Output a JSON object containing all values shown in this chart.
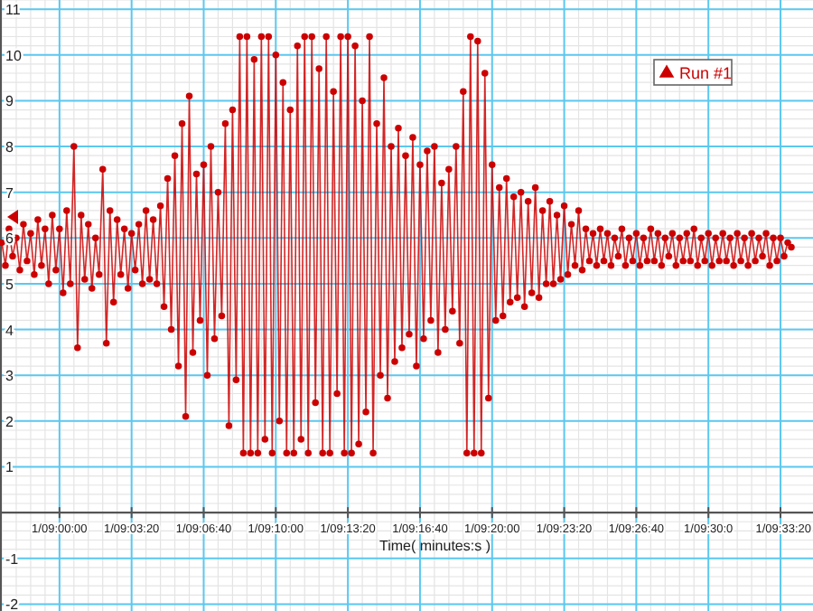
{
  "chart_data": {
    "type": "line",
    "xlabel": "Time( minutes:s )",
    "legend": "top right",
    "marker": "circle",
    "grid": true,
    "ylim": [
      -2.15,
      11.2
    ],
    "yticks": [
      -2,
      -1,
      1,
      2,
      3,
      4,
      5,
      6,
      7,
      8,
      9,
      10,
      11
    ],
    "categories": [
      null,
      null,
      null,
      null,
      null,
      null,
      null,
      null,
      null,
      null,
      null,
      null,
      null,
      null,
      null,
      null,
      "1/09:00:00",
      null,
      null,
      null,
      null,
      null,
      null,
      null,
      null,
      null,
      null,
      null,
      null,
      null,
      null,
      null,
      null,
      null,
      null,
      null,
      "1/09:03:20",
      null,
      null,
      null,
      null,
      null,
      null,
      null,
      null,
      null,
      null,
      null,
      null,
      null,
      null,
      null,
      null,
      null,
      null,
      null,
      "1/09:06:40",
      null,
      null,
      null,
      null,
      null,
      null,
      null,
      null,
      null,
      null,
      null,
      null,
      null,
      null,
      null,
      null,
      null,
      null,
      null,
      "1/09:10:00",
      null,
      null,
      null,
      null,
      null,
      null,
      null,
      null,
      null,
      null,
      null,
      null,
      null,
      null,
      null,
      null,
      null,
      null,
      null,
      "1/09:13:20",
      null,
      null,
      null,
      null,
      null,
      null,
      null,
      null,
      null,
      null,
      null,
      null,
      null,
      null,
      null,
      null,
      null,
      null,
      null,
      "1/09:16:40",
      null,
      null,
      null,
      null,
      null,
      null,
      null,
      null,
      null,
      null,
      null,
      null,
      null,
      null,
      null,
      null,
      null,
      null,
      null,
      "1/09:20:00",
      null,
      null,
      null,
      null,
      null,
      null,
      null,
      null,
      null,
      null,
      null,
      null,
      null,
      null,
      null,
      null,
      null,
      null,
      null,
      "1/09:23:20",
      null,
      null,
      null,
      null,
      null,
      null,
      null,
      null,
      null,
      null,
      null,
      null,
      null,
      null,
      null,
      null,
      null,
      null,
      null,
      "1/09:26:40",
      null,
      null,
      null,
      null,
      null,
      null,
      null,
      null,
      null,
      null,
      null,
      null,
      null,
      null,
      null,
      null,
      null,
      null,
      null,
      "1/09:30:0",
      null,
      null,
      null,
      null,
      null,
      null,
      null,
      null,
      null,
      null,
      null,
      null,
      null,
      null,
      null,
      null,
      null,
      null,
      null,
      "1/09:33:20",
      null,
      null,
      null
    ],
    "series": [
      {
        "name": "Run #1",
        "color": "#cc0000",
        "values": [
          5.9,
          5.4,
          6.2,
          5.6,
          6.0,
          5.3,
          6.3,
          5.5,
          6.1,
          5.2,
          6.4,
          5.4,
          6.2,
          5.0,
          6.5,
          5.3,
          6.2,
          4.8,
          6.6,
          5.0,
          8.0,
          3.6,
          6.5,
          5.1,
          6.3,
          4.9,
          6.0,
          5.2,
          7.5,
          3.7,
          6.6,
          4.6,
          6.4,
          5.2,
          6.2,
          4.9,
          6.1,
          5.3,
          6.3,
          5.0,
          6.6,
          5.1,
          6.4,
          5.0,
          6.7,
          4.5,
          7.3,
          4.0,
          7.8,
          3.2,
          8.5,
          2.1,
          9.1,
          3.5,
          7.4,
          4.2,
          7.6,
          3.0,
          8.0,
          3.8,
          7.0,
          4.3,
          8.5,
          1.9,
          8.8,
          2.9,
          10.4,
          1.3,
          10.4,
          1.3,
          9.9,
          1.3,
          10.4,
          1.6,
          10.4,
          1.3,
          10.0,
          2.0,
          9.4,
          1.3,
          8.8,
          1.3,
          10.2,
          1.6,
          10.4,
          1.3,
          10.4,
          2.4,
          9.7,
          1.3,
          10.4,
          1.3,
          9.2,
          2.6,
          10.4,
          1.3,
          10.4,
          1.3,
          10.2,
          1.5,
          9.0,
          2.2,
          10.4,
          1.3,
          8.5,
          3.0,
          9.5,
          2.5,
          8.0,
          3.3,
          8.4,
          3.6,
          7.8,
          3.9,
          8.2,
          3.2,
          7.6,
          3.8,
          7.9,
          4.2,
          8.0,
          3.5,
          7.2,
          4.0,
          7.5,
          4.4,
          8.0,
          3.7,
          9.2,
          1.3,
          10.4,
          1.3,
          10.3,
          1.3,
          9.6,
          2.5,
          7.6,
          4.2,
          7.1,
          4.3,
          7.3,
          4.6,
          6.9,
          4.7,
          7.0,
          4.5,
          6.8,
          4.8,
          7.1,
          4.7,
          6.6,
          5.0,
          6.8,
          5.0,
          6.5,
          5.1,
          6.7,
          5.2,
          6.3,
          5.4,
          6.6,
          5.3,
          6.2,
          5.5,
          6.1,
          5.4,
          6.2,
          5.5,
          6.1,
          5.4,
          6.0,
          5.6,
          6.2,
          5.4,
          6.0,
          5.5,
          6.1,
          5.4,
          6.0,
          5.5,
          6.2,
          5.5,
          6.1,
          5.4,
          6.0,
          5.6,
          6.1,
          5.4,
          6.0,
          5.5,
          6.1,
          5.5,
          6.2,
          5.4,
          6.0,
          5.5,
          6.1,
          5.4,
          6.0,
          5.5,
          6.1,
          5.5,
          6.0,
          5.4,
          6.1,
          5.5,
          6.0,
          5.4,
          6.1,
          5.5,
          6.0,
          5.6,
          6.1,
          5.4,
          6.0,
          5.5,
          6.0,
          5.6,
          5.9,
          5.8
        ]
      }
    ]
  }
}
